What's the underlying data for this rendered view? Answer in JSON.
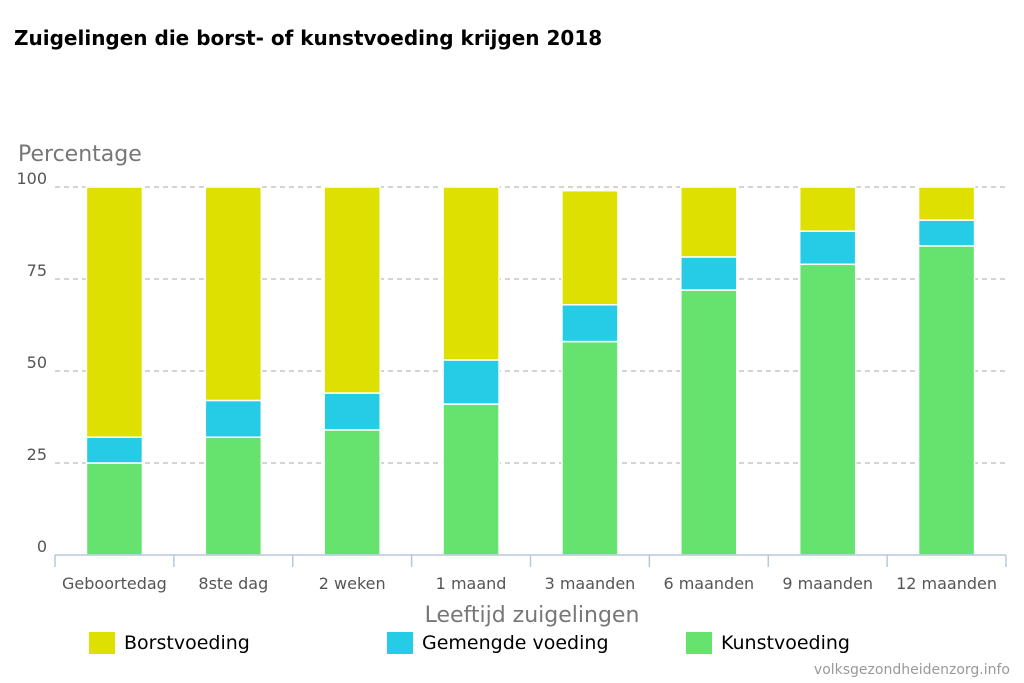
{
  "chart_data": {
    "type": "bar",
    "stacked": true,
    "title": "Zuigelingen die borst- of kunstvoeding krijgen 2018",
    "ylabel": "Percentage",
    "xlabel": "Leeftijd zuigelingen",
    "ylim": [
      0,
      100
    ],
    "yticks": [
      "0",
      "25",
      "50",
      "75",
      "100"
    ],
    "grid": true,
    "legend_position": "bottom",
    "categories": [
      "Geboortedag",
      "8ste dag",
      "2 weken",
      "1 maand",
      "3 maanden",
      "6 maanden",
      "9 maanden",
      "12 maanden"
    ],
    "series": [
      {
        "name": "Kunstvoeding",
        "color": "#66e36e",
        "values": [
          25,
          32,
          34,
          41,
          58,
          72,
          79,
          84
        ]
      },
      {
        "name": "Gemengde voeding",
        "color": "#26cce6",
        "values": [
          7,
          10,
          10,
          12,
          10,
          9,
          9,
          7
        ]
      },
      {
        "name": "Borstvoeding",
        "color": "#dde000",
        "values": [
          68,
          58,
          56,
          47,
          31,
          19,
          12,
          9
        ]
      }
    ],
    "legend": [
      "Borstvoeding",
      "Gemengde voeding",
      "Kunstvoeding"
    ]
  },
  "source": "volksgezondheidenzorg.info"
}
